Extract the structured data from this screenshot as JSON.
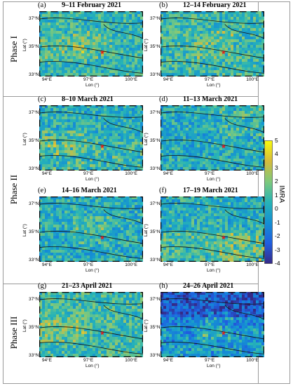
{
  "phases": [
    "Phase I",
    "Phase II",
    "Phase III"
  ],
  "axes": {
    "lat_label": "Lat (°)",
    "lon_label": "Lon (°)",
    "lat_ticks": [
      "37°N",
      "35°N",
      "33°N"
    ],
    "lon_ticks": [
      "94°E",
      "97°E",
      "100°E"
    ]
  },
  "colorbar": {
    "label": "IMRA",
    "ticks": [
      "5",
      "4",
      "3",
      "2",
      "1",
      "0",
      "-1",
      "-2",
      "-3",
      "-4"
    ],
    "range": [
      -4,
      5
    ],
    "colors": [
      "#352a87",
      "#1f5ee0",
      "#1490d4",
      "#27b4b6",
      "#7ec97c",
      "#d6bb3c",
      "#f8fa0d"
    ]
  },
  "chart_data": [
    {
      "type": "heatmap",
      "tag": "(a)",
      "title": "9–11 February 2021",
      "phase": "Phase I",
      "mean_imra": 0.6,
      "hot_spots": "west-central"
    },
    {
      "type": "heatmap",
      "tag": "(b)",
      "title": "12–14 February 2021",
      "phase": "Phase I",
      "mean_imra": 0.8,
      "hot_spots": "central"
    },
    {
      "type": "heatmap",
      "tag": "(c)",
      "title": "8–10 March 2021",
      "phase": "Phase II",
      "mean_imra": 0.2,
      "hot_spots": "south-west"
    },
    {
      "type": "heatmap",
      "tag": "(d)",
      "title": "11–13 March 2021",
      "phase": "Phase II",
      "mean_imra": 0.1,
      "hot_spots": "north-east"
    },
    {
      "type": "heatmap",
      "tag": "(e)",
      "title": "14–16 March 2021",
      "phase": "Phase II",
      "mean_imra": 0.2,
      "hot_spots": "central"
    },
    {
      "type": "heatmap",
      "tag": "(f)",
      "title": "17–19 March 2021",
      "phase": "Phase II",
      "mean_imra": 0.3,
      "hot_spots": "south-east"
    },
    {
      "type": "heatmap",
      "tag": "(g)",
      "title": "21–23 April 2021",
      "phase": "Phase III",
      "mean_imra": 0.9,
      "hot_spots": "west"
    },
    {
      "type": "heatmap",
      "tag": "(h)",
      "title": "24–26 April 2021",
      "phase": "Phase III",
      "mean_imra": -1.2,
      "hot_spots": "south-central"
    }
  ]
}
